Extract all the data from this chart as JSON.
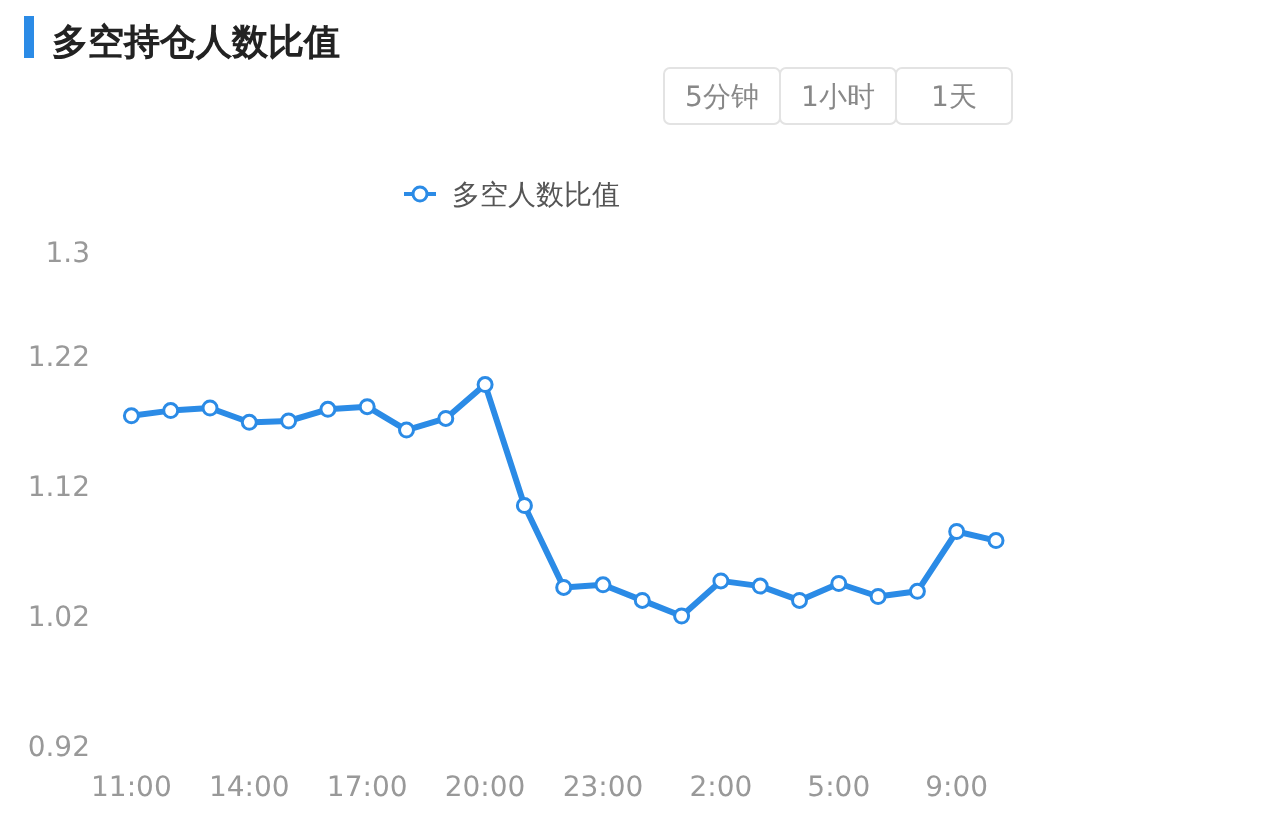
{
  "chart_data": {
    "type": "line",
    "title": "多空持仓人数比值",
    "annotations": [
      "5分钟",
      "1小时",
      "1天"
    ],
    "categories": [
      "11:00",
      null,
      null,
      "14:00",
      null,
      null,
      "17:00",
      null,
      null,
      "20:00",
      null,
      null,
      "23:00",
      null,
      null,
      "2:00",
      null,
      null,
      "5:00",
      null,
      null,
      "9:00",
      null
    ],
    "series": [
      {
        "name": "多空人数比值",
        "color": "#2b8be6",
        "values": [
          1.174,
          1.178,
          1.18,
          1.169,
          1.17,
          1.179,
          1.181,
          1.163,
          1.172,
          1.198,
          1.105,
          1.042,
          1.044,
          1.032,
          1.02,
          1.047,
          1.043,
          1.032,
          1.045,
          1.035,
          1.039,
          1.085,
          1.078
        ]
      }
    ],
    "ylim": [
      0.92,
      1.3
    ],
    "yticks": [
      0.92,
      1.02,
      1.12,
      1.22,
      1.3
    ],
    "legend": "top",
    "marker": "circle",
    "line_style": "solid"
  }
}
